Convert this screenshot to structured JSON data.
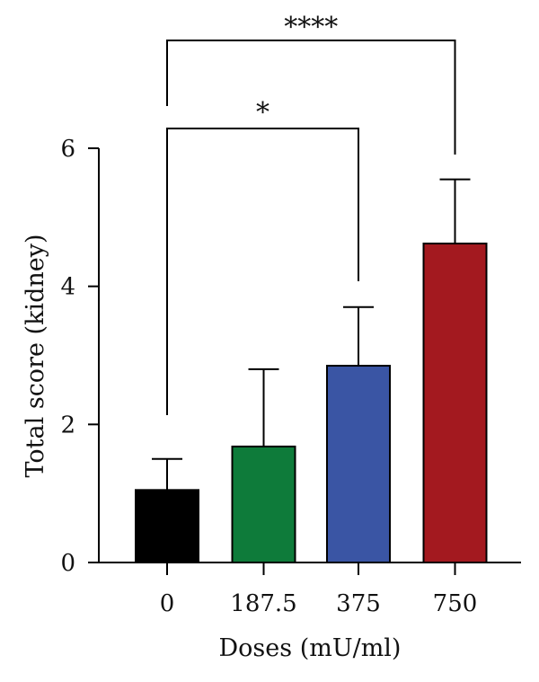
{
  "chart_data": {
    "type": "bar",
    "categories": [
      "0",
      "187.5",
      "375",
      "750"
    ],
    "values": [
      1.05,
      1.68,
      2.85,
      4.62
    ],
    "error_upper": [
      1.5,
      2.8,
      3.7,
      5.55
    ],
    "colors": [
      "#000000",
      "#0e7b3a",
      "#3a55a4",
      "#a3191f"
    ],
    "title": "",
    "xlabel": "Doses (mU/ml)",
    "ylabel": "Total score (kidney)",
    "ylim": [
      0,
      6
    ],
    "yticks": [
      "0",
      "2",
      "4",
      "6"
    ],
    "grid": false,
    "significance": [
      {
        "from": 0,
        "to": 2,
        "label": "*"
      },
      {
        "from": 0,
        "to": 3,
        "label": "****"
      }
    ]
  }
}
